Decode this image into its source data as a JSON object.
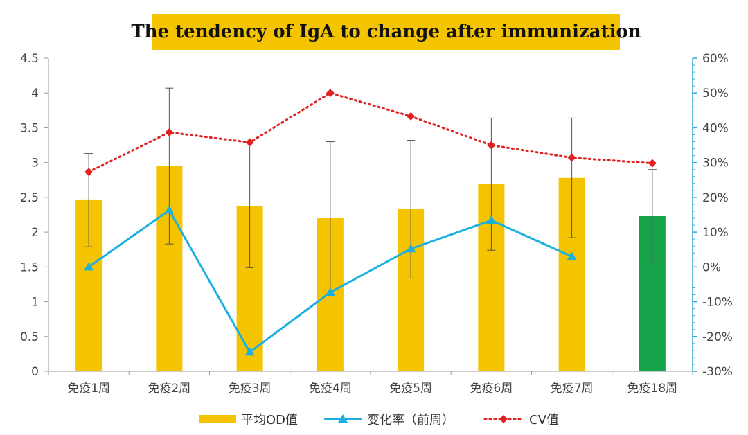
{
  "chart_data": {
    "type": "bar",
    "title": "The tendency of IgA to change after immunization",
    "categories": [
      "免疫1周",
      "免疫2周",
      "免疫3周",
      "免疫4周",
      "免疫5周",
      "免疫6周",
      "免疫7周",
      "免疫18周"
    ],
    "left_axis": {
      "ylim": [
        0,
        4.5
      ],
      "ticks": [
        "0",
        "0.5",
        "1",
        "1.5",
        "2",
        "2.5",
        "3",
        "3.5",
        "4",
        "4.5"
      ]
    },
    "right_axis": {
      "ylim": [
        -30,
        60
      ],
      "ticks": [
        "-30%",
        "-20%",
        "-10%",
        "0%",
        "10%",
        "20%",
        "30%",
        "40%",
        "50%",
        "60%"
      ]
    },
    "series": [
      {
        "name": "平均OD值",
        "kind": "bar",
        "axis": "left",
        "values": [
          2.46,
          2.95,
          2.37,
          2.2,
          2.33,
          2.69,
          2.78,
          2.23
        ],
        "error": [
          0.67,
          1.12,
          0.88,
          1.1,
          0.99,
          0.95,
          0.86,
          0.67
        ],
        "colors": [
          "#f5c400",
          "#f5c400",
          "#f5c400",
          "#f5c400",
          "#f5c400",
          "#f5c400",
          "#f5c400",
          "#16a34a"
        ]
      },
      {
        "name": "变化率（前周）",
        "kind": "line",
        "axis": "right",
        "color": "#1cb0e0",
        "values": [
          0,
          16.3,
          -24.5,
          -7.3,
          5.2,
          13.4,
          3.0,
          null
        ]
      },
      {
        "name": "CV值",
        "kind": "dotted-line",
        "axis": "right",
        "color": "#e02020",
        "values": [
          27.3,
          38.7,
          35.8,
          50.0,
          43.3,
          35.0,
          31.4,
          29.8
        ]
      }
    ]
  }
}
